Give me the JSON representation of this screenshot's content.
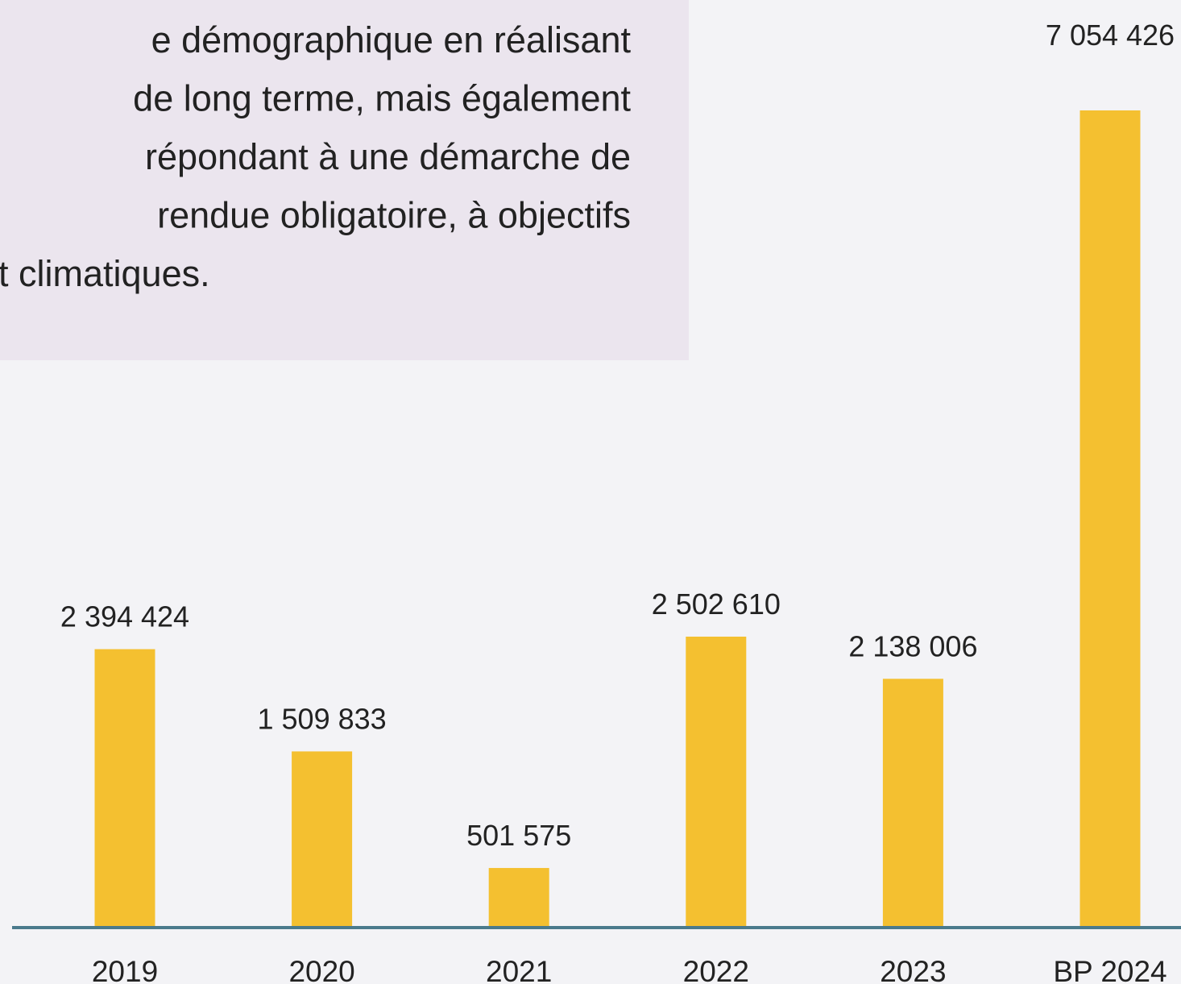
{
  "chart_data": {
    "type": "bar",
    "text_lines": [
      "e démographique en réalisant",
      "de long terme, mais également",
      "répondant à une démarche de",
      "rendue obligatoire, à objectifs",
      "t climatiques."
    ],
    "categories": [
      "2019",
      "2020",
      "2021",
      "2022",
      "2023",
      "BP 2024"
    ],
    "values": [
      2394424,
      1509833,
      501575,
      2502610,
      2138006,
      7054426
    ],
    "value_labels": [
      "2 394 424",
      "1 509 833",
      "501 575",
      "2 502 610",
      "2 138 006",
      "7 054 426"
    ],
    "color": "#f4c030"
  }
}
